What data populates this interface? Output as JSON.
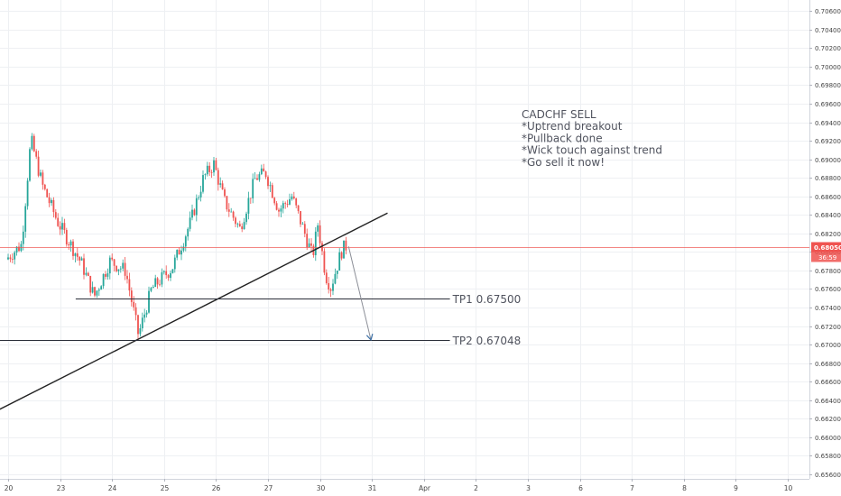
{
  "chart_data": {
    "type": "candlestick",
    "symbol": "CADCHF",
    "ylim": [
      0.6555,
      0.7072
    ],
    "y_ticks": [
      "0.70600",
      "0.70400",
      "0.70200",
      "0.70000",
      "0.69800",
      "0.69600",
      "0.69400",
      "0.69200",
      "0.69000",
      "0.68800",
      "0.68600",
      "0.68400",
      "0.68200",
      "0.68000",
      "0.67800",
      "0.67600",
      "0.67400",
      "0.67200",
      "0.67000",
      "0.66800",
      "0.66600",
      "0.66400",
      "0.66200",
      "0.66000",
      "0.65800",
      "0.65600"
    ],
    "x_ticks": [
      {
        "label": "20",
        "day": 0
      },
      {
        "label": "23",
        "day": 1
      },
      {
        "label": "24",
        "day": 2
      },
      {
        "label": "25",
        "day": 3
      },
      {
        "label": "26",
        "day": 4
      },
      {
        "label": "27",
        "day": 5
      },
      {
        "label": "30",
        "day": 6
      },
      {
        "label": "31",
        "day": 7
      },
      {
        "label": "Apr",
        "day": 8
      },
      {
        "label": "2",
        "day": 9
      },
      {
        "label": "3",
        "day": 10
      },
      {
        "label": "6",
        "day": 11
      },
      {
        "label": "7",
        "day": 12
      },
      {
        "label": "8",
        "day": 13
      },
      {
        "label": "9",
        "day": 14
      },
      {
        "label": "10",
        "day": 15
      }
    ],
    "grid": true,
    "colors": {
      "up": "#26a69a",
      "down": "#ef5350",
      "price_line": "#ef5350",
      "trendline": "#222222",
      "level": "#2a2e39",
      "arrow": "#3a6ea5",
      "text": "#50535e"
    },
    "current_price": {
      "value": 0.6805,
      "label": "0.68050",
      "countdown": "36:59"
    },
    "key_points": [
      {
        "day": 0.0,
        "price": 0.6792
      },
      {
        "day": 0.3,
        "price": 0.6808
      },
      {
        "day": 0.48,
        "price": 0.6922
      },
      {
        "day": 0.7,
        "price": 0.6872
      },
      {
        "day": 1.0,
        "price": 0.6832
      },
      {
        "day": 1.45,
        "price": 0.6788
      },
      {
        "day": 1.7,
        "price": 0.6752
      },
      {
        "day": 2.0,
        "price": 0.679
      },
      {
        "day": 2.3,
        "price": 0.678
      },
      {
        "day": 2.55,
        "price": 0.671
      },
      {
        "day": 2.8,
        "price": 0.676
      },
      {
        "day": 3.2,
        "price": 0.6783
      },
      {
        "day": 3.55,
        "price": 0.6832
      },
      {
        "day": 3.8,
        "price": 0.688
      },
      {
        "day": 4.0,
        "price": 0.6895
      },
      {
        "day": 4.2,
        "price": 0.6855
      },
      {
        "day": 4.5,
        "price": 0.6825
      },
      {
        "day": 4.8,
        "price": 0.688
      },
      {
        "day": 5.0,
        "price": 0.6885
      },
      {
        "day": 5.25,
        "price": 0.6845
      },
      {
        "day": 5.5,
        "price": 0.686
      },
      {
        "day": 5.7,
        "price": 0.6828
      },
      {
        "day": 5.9,
        "price": 0.6795
      },
      {
        "day": 6.0,
        "price": 0.683
      },
      {
        "day": 6.15,
        "price": 0.6775
      },
      {
        "day": 6.25,
        "price": 0.6762
      },
      {
        "day": 6.45,
        "price": 0.68
      },
      {
        "day": 6.52,
        "price": 0.6806
      }
    ],
    "drawings": {
      "trendline": {
        "from": {
          "day": -0.2,
          "price": 0.6629
        },
        "to": {
          "day": 7.3,
          "price": 0.6842
        }
      },
      "tp1": {
        "from_day": 1.3,
        "to_day": 8.5,
        "price": 0.675,
        "label": "TP1 0.67500"
      },
      "tp2": {
        "from_day": -0.2,
        "to_day": 8.5,
        "price": 0.67048,
        "label": "TP2 0.67048"
      },
      "arrow": {
        "from": {
          "day": 6.55,
          "price": 0.6806
        },
        "to": {
          "day": 6.98,
          "price": 0.6705
        }
      }
    },
    "annotation": {
      "lines": [
        "CADCHF SELL",
        "*Uptrend breakout",
        "*Pullback done",
        "*Wick touch against trend",
        "*Go sell it now!"
      ]
    }
  }
}
